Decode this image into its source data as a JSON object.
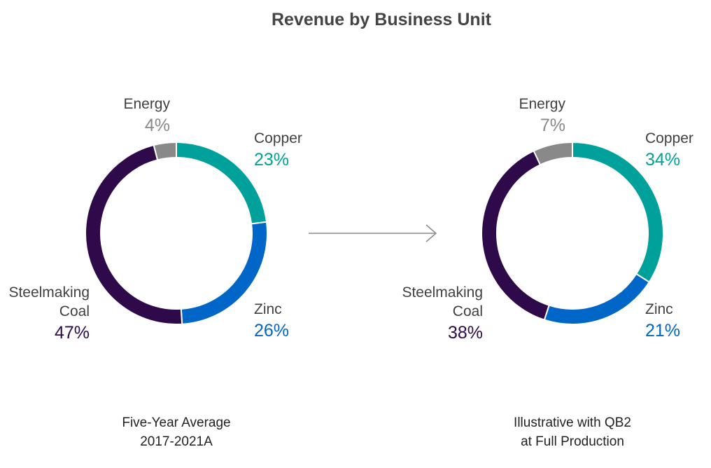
{
  "title": "Revenue by Business Unit",
  "colors": {
    "Copper": "#00A19A",
    "Zinc": "#0066C8",
    "Steelmaking Coal": "#2E0A4A",
    "Energy": "#898989",
    "arrow": "#8A8A8A"
  },
  "chart_data": [
    {
      "type": "pie",
      "variant": "donut",
      "caption": [
        "Five-Year Average",
        "2017-2021A"
      ],
      "slices": [
        {
          "label": "Copper",
          "label_lines": [
            "Copper"
          ],
          "value": 23,
          "value_text": "23%"
        },
        {
          "label": "Zinc",
          "label_lines": [
            "Zinc"
          ],
          "value": 26,
          "value_text": "26%"
        },
        {
          "label": "Steelmaking Coal",
          "label_lines": [
            "Steelmaking",
            "Coal"
          ],
          "value": 47,
          "value_text": "47%"
        },
        {
          "label": "Energy",
          "label_lines": [
            "Energy"
          ],
          "value": 4,
          "value_text": "4%"
        }
      ]
    },
    {
      "type": "pie",
      "variant": "donut",
      "caption": [
        "Illustrative with QB2",
        "at Full Production"
      ],
      "slices": [
        {
          "label": "Copper",
          "label_lines": [
            "Copper"
          ],
          "value": 34,
          "value_text": "34%"
        },
        {
          "label": "Zinc",
          "label_lines": [
            "Zinc"
          ],
          "value": 21,
          "value_text": "21%"
        },
        {
          "label": "Steelmaking Coal",
          "label_lines": [
            "Steelmaking",
            "Coal"
          ],
          "value": 38,
          "value_text": "38%"
        },
        {
          "label": "Energy",
          "label_lines": [
            "Energy"
          ],
          "value": 7,
          "value_text": "7%"
        }
      ]
    }
  ]
}
